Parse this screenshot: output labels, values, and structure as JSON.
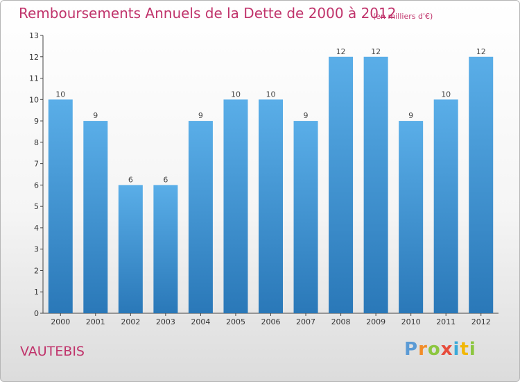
{
  "chart_data": {
    "type": "bar",
    "title": "Remboursements Annuels de la Dette de 2000 à 2012",
    "subtitle": "(en milliers d'€)",
    "categories": [
      "2000",
      "2001",
      "2002",
      "2003",
      "2004",
      "2005",
      "2006",
      "2007",
      "2008",
      "2009",
      "2010",
      "2011",
      "2012"
    ],
    "values": [
      10,
      9,
      6,
      6,
      9,
      10,
      10,
      9,
      12,
      12,
      9,
      10,
      12
    ],
    "ylim": [
      0,
      13
    ],
    "yticks": [
      0,
      1,
      2,
      3,
      4,
      5,
      6,
      7,
      8,
      9,
      10,
      11,
      12,
      13
    ],
    "grid": false,
    "data_labels": true,
    "bar_color": "#3f97d8",
    "bar_color_dark": "#2a78b8"
  },
  "place_name": "VAUTEBIS",
  "brand": {
    "letters": [
      "P",
      "r",
      "o",
      "x",
      "i",
      "t",
      "i"
    ],
    "colors": [
      "#5b9bd5",
      "#f28c28",
      "#8cc63f",
      "#e74c3c",
      "#3aa9d8",
      "#f2b705",
      "#8cc63f"
    ]
  },
  "colors": {
    "title": "#c0336b"
  }
}
